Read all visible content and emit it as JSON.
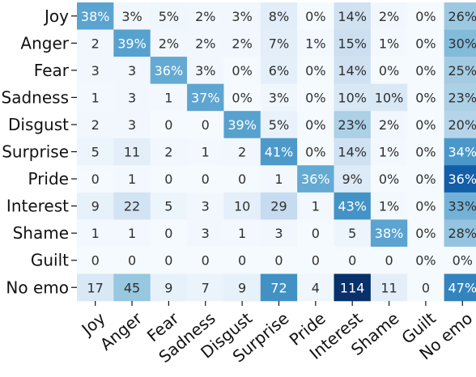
{
  "chart_data": {
    "type": "heatmap",
    "title": "",
    "xlabel": "",
    "ylabel": "",
    "rows": [
      "Joy",
      "Anger",
      "Fear",
      "Sadness",
      "Disgust",
      "Surprise",
      "Pride",
      "Interest",
      "Shame",
      "Guilt",
      "No emo"
    ],
    "columns": [
      "Joy",
      "Anger",
      "Fear",
      "Sadness",
      "Disgust",
      "Surprise",
      "Pride",
      "Interest",
      "Shame",
      "Guilt",
      "No emo"
    ],
    "cells": [
      [
        "38%",
        "3%",
        "5%",
        "2%",
        "3%",
        "8%",
        "0%",
        "14%",
        "2%",
        "0%",
        "26%"
      ],
      [
        "2",
        "39%",
        "2%",
        "2%",
        "2%",
        "7%",
        "1%",
        "15%",
        "1%",
        "0%",
        "30%"
      ],
      [
        "3",
        "3",
        "36%",
        "3%",
        "0%",
        "6%",
        "0%",
        "14%",
        "0%",
        "0%",
        "25%"
      ],
      [
        "1",
        "3",
        "1",
        "37%",
        "0%",
        "3%",
        "0%",
        "10%",
        "10%",
        "0%",
        "23%"
      ],
      [
        "2",
        "3",
        "0",
        "0",
        "39%",
        "5%",
        "0%",
        "23%",
        "2%",
        "0%",
        "20%"
      ],
      [
        "5",
        "11",
        "2",
        "1",
        "2",
        "41%",
        "0%",
        "14%",
        "1%",
        "0%",
        "34%"
      ],
      [
        "0",
        "1",
        "0",
        "0",
        "0",
        "1",
        "36%",
        "9%",
        "0%",
        "0%",
        "36%"
      ],
      [
        "9",
        "22",
        "5",
        "3",
        "10",
        "29",
        "1",
        "43%",
        "1%",
        "0%",
        "33%"
      ],
      [
        "1",
        "1",
        "0",
        "3",
        "1",
        "3",
        "0",
        "5",
        "38%",
        "0%",
        "28%"
      ],
      [
        "0",
        "0",
        "0",
        "0",
        "0",
        "0",
        "0",
        "0",
        "0",
        "0%",
        "0%"
      ],
      [
        "17",
        "45",
        "9",
        "7",
        "9",
        "72",
        "4",
        "114",
        "11",
        "0",
        "47%"
      ]
    ],
    "intensity": [
      [
        0.55,
        0.03,
        0.04,
        0.03,
        0.03,
        0.11,
        0.01,
        0.2,
        0.03,
        0.01,
        0.38
      ],
      [
        0.03,
        0.56,
        0.03,
        0.03,
        0.03,
        0.1,
        0.02,
        0.22,
        0.02,
        0.01,
        0.44
      ],
      [
        0.03,
        0.03,
        0.52,
        0.03,
        0.01,
        0.09,
        0.01,
        0.2,
        0.01,
        0.01,
        0.36
      ],
      [
        0.02,
        0.03,
        0.02,
        0.54,
        0.01,
        0.04,
        0.01,
        0.15,
        0.15,
        0.01,
        0.33
      ],
      [
        0.03,
        0.03,
        0.01,
        0.01,
        0.56,
        0.07,
        0.01,
        0.33,
        0.03,
        0.01,
        0.3
      ],
      [
        0.05,
        0.1,
        0.03,
        0.02,
        0.03,
        0.59,
        0.01,
        0.2,
        0.02,
        0.01,
        0.6
      ],
      [
        0.01,
        0.02,
        0.01,
        0.01,
        0.01,
        0.02,
        0.52,
        0.13,
        0.01,
        0.01,
        0.82
      ],
      [
        0.08,
        0.19,
        0.05,
        0.03,
        0.09,
        0.25,
        0.02,
        0.62,
        0.02,
        0.01,
        0.48
      ],
      [
        0.02,
        0.02,
        0.01,
        0.03,
        0.02,
        0.03,
        0.01,
        0.05,
        0.55,
        0.01,
        0.4
      ],
      [
        0.01,
        0.01,
        0.01,
        0.01,
        0.01,
        0.01,
        0.01,
        0.01,
        0.01,
        0.01,
        0.01
      ],
      [
        0.15,
        0.39,
        0.08,
        0.06,
        0.08,
        0.63,
        0.04,
        1.0,
        0.1,
        0.01,
        0.68
      ]
    ],
    "colormap": [
      "#f7fbff",
      "#deebf7",
      "#c6dbef",
      "#9ecae1",
      "#6baed6",
      "#4292c6",
      "#2171b5",
      "#08519c",
      "#08306b"
    ],
    "grid": false,
    "legend": "none"
  }
}
